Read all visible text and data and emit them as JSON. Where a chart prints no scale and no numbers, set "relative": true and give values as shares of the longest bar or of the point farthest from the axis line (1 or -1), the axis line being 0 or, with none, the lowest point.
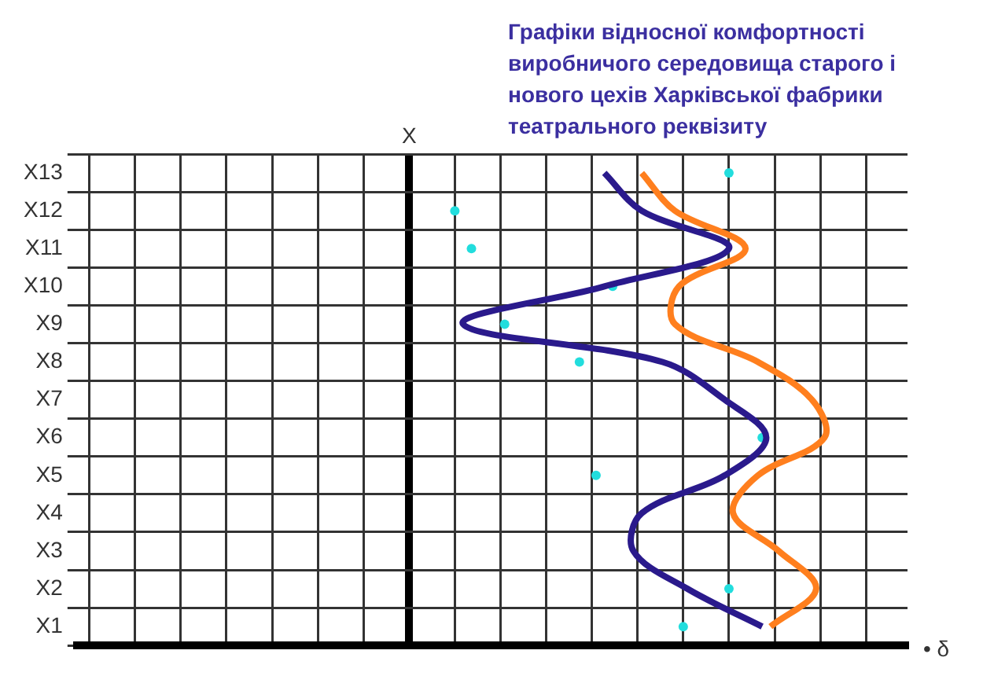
{
  "chart_data": {
    "type": "line",
    "orientation": "horizontal",
    "relative": true,
    "title": "Графіки відносної комфортності виробничого середовища старого і нового цехів Харківської фабрики театрального реквізиту",
    "xlabel": "• δ",
    "ylabel": "X",
    "categories": [
      "X13",
      "X12",
      "X11",
      "X10",
      "X9",
      "X8",
      "X7",
      "X6",
      "X5",
      "X4",
      "X3",
      "X2",
      "X1"
    ],
    "grid": true,
    "legend": false,
    "marker": "none",
    "series": [
      {
        "color": "#2a1a8c",
        "values": [
          0.47,
          0.56,
          0.77,
          0.47,
          0.13,
          0.61,
          0.76,
          0.86,
          0.76,
          0.56,
          0.54,
          0.67,
          0.85
        ]
      },
      {
        "color": "#ff7f1e",
        "values": [
          0.56,
          0.64,
          0.81,
          0.65,
          0.64,
          0.84,
          0.97,
          1,
          0.84,
          0.78,
          0.89,
          0.98,
          0.87
        ]
      },
      {
        "type": "scatter",
        "marker": "circle",
        "color": "#22dddd",
        "values": [
          0.77,
          0.11,
          0.15,
          0.49,
          0.23,
          0.41,
          null,
          0.85,
          0.45,
          null,
          null,
          0.77,
          0.66
        ]
      }
    ]
  }
}
